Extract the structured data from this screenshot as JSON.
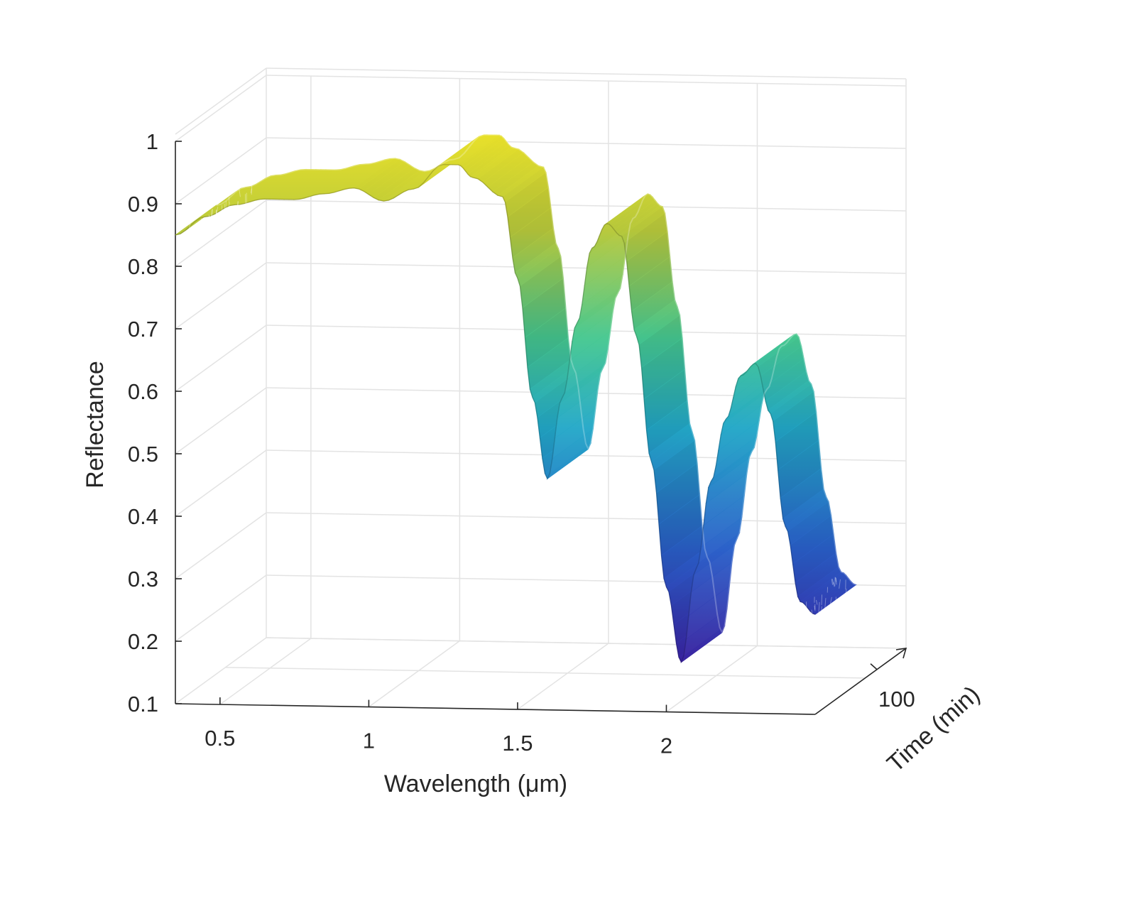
{
  "chart_data": {
    "type": "surface3d",
    "xlabel": "Wavelength (μm)",
    "ylabel": "Reflectance",
    "zlabel": "Time (min)",
    "x_ticks": [
      "0.5",
      "1",
      "1.5",
      "2"
    ],
    "y_ticks": [
      "0.1",
      "0.2",
      "0.3",
      "0.4",
      "0.5",
      "0.6",
      "0.7",
      "0.8",
      "0.9",
      "1"
    ],
    "t_ticks": [
      "100"
    ],
    "xlim": [
      0.35,
      2.5
    ],
    "ylim": [
      0.1,
      1.0
    ],
    "grid": true,
    "colormap": [
      "#3a1f9e",
      "#2a5fc9",
      "#23a8c8",
      "#46c890",
      "#b8c93c",
      "#e8e02a"
    ],
    "series": [
      {
        "x": [
          0.35,
          0.45,
          0.55,
          0.65,
          0.75,
          0.85,
          0.95,
          1.05,
          1.15,
          1.25,
          1.3,
          1.35,
          1.45,
          1.5,
          1.55,
          1.6,
          1.65,
          1.7,
          1.75,
          1.8,
          1.85,
          1.9,
          1.95,
          2.0,
          2.05,
          2.1,
          2.15,
          2.2,
          2.25,
          2.3,
          2.35,
          2.4,
          2.45,
          2.5
        ],
        "y": [
          0.85,
          0.88,
          0.9,
          0.91,
          0.91,
          0.92,
          0.93,
          0.91,
          0.93,
          0.97,
          0.97,
          0.95,
          0.92,
          0.79,
          0.6,
          0.47,
          0.6,
          0.72,
          0.84,
          0.88,
          0.86,
          0.7,
          0.5,
          0.3,
          0.18,
          0.33,
          0.47,
          0.57,
          0.64,
          0.66,
          0.58,
          0.4,
          0.28,
          0.26
        ]
      }
    ]
  }
}
